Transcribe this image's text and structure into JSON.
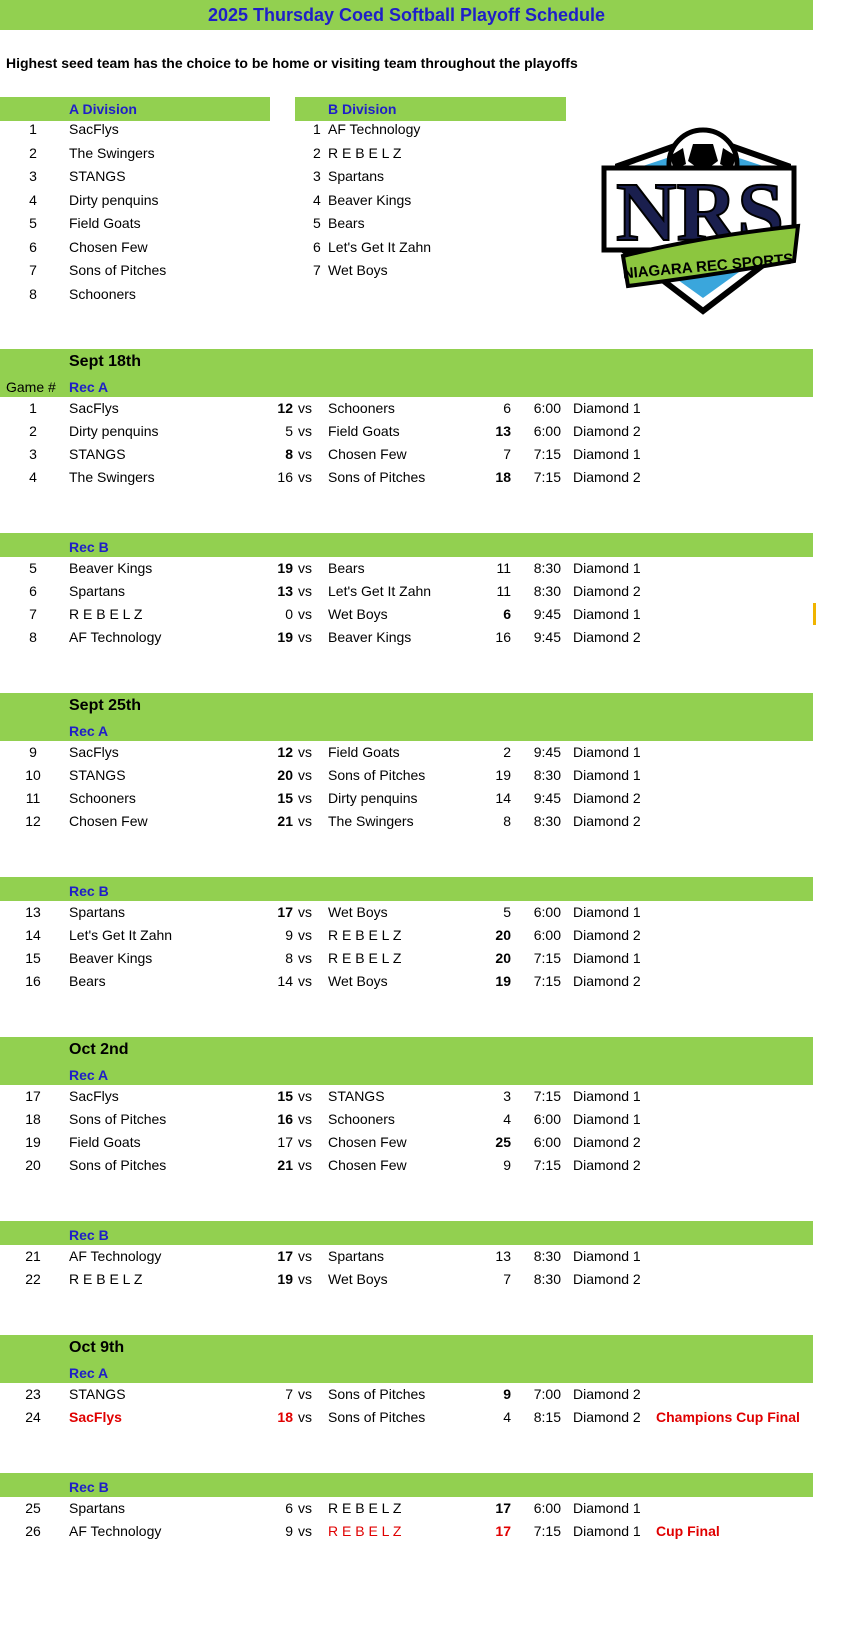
{
  "title": "2025 Thursday Coed Softball Playoff Schedule",
  "note": "Highest seed team has the choice to be home or visiting team throughout the playoffs",
  "colors": {
    "band": "#92d050",
    "header_text": "#1f1fc8",
    "highlight": "#e00000"
  },
  "logo": {
    "text": "NRS",
    "banner": "NIAGARA REC SPORTS"
  },
  "divisions": [
    {
      "label": "A Division",
      "teams": [
        {
          "seed": "1",
          "name": "SacFlys"
        },
        {
          "seed": "2",
          "name": "The Swingers"
        },
        {
          "seed": "3",
          "name": "STANGS"
        },
        {
          "seed": "4",
          "name": "Dirty penquins"
        },
        {
          "seed": "5",
          "name": "Field Goats"
        },
        {
          "seed": "6",
          "name": "Chosen Few"
        },
        {
          "seed": "7",
          "name": "Sons of Pitches"
        },
        {
          "seed": "8",
          "name": "Schooners"
        }
      ]
    },
    {
      "label": "B Division",
      "teams": [
        {
          "seed": "1",
          "name": "AF Technology"
        },
        {
          "seed": "2",
          "name": "R E B E L Z"
        },
        {
          "seed": "3",
          "name": "Spartans"
        },
        {
          "seed": "4",
          "name": "Beaver Kings"
        },
        {
          "seed": "5",
          "name": "Bears"
        },
        {
          "seed": "6",
          "name": "Let's Get It Zahn"
        },
        {
          "seed": "7",
          "name": "Wet Boys"
        }
      ]
    }
  ],
  "game_col_label": "Game #",
  "vs": "vs",
  "weeks": [
    {
      "date": "Sept 18th",
      "groups": [
        {
          "label": "Rec A",
          "games": [
            {
              "n": "1",
              "t1": "SacFlys",
              "s1": "12",
              "t2": "Schooners",
              "s2": "6",
              "time": "6:00",
              "field": "Diamond 1",
              "win": 1
            },
            {
              "n": "2",
              "t1": "Dirty penquins",
              "s1": "5",
              "t2": "Field Goats",
              "s2": "13",
              "time": "6:00",
              "field": "Diamond 2",
              "win": 2
            },
            {
              "n": "3",
              "t1": "STANGS",
              "s1": "8",
              "t2": "Chosen Few",
              "s2": "7",
              "time": "7:15",
              "field": "Diamond 1",
              "win": 1
            },
            {
              "n": "4",
              "t1": "The Swingers",
              "s1": "16",
              "t2": "Sons of Pitches",
              "s2": "18",
              "time": "7:15",
              "field": "Diamond 2",
              "win": 2
            }
          ]
        },
        {
          "label": "Rec B",
          "games": [
            {
              "n": "5",
              "t1": "Beaver Kings",
              "s1": "19",
              "t2": "Bears",
              "s2": "11",
              "time": "8:30",
              "field": "Diamond 1",
              "win": 1
            },
            {
              "n": "6",
              "t1": "Spartans",
              "s1": "13",
              "t2": "Let's Get It Zahn",
              "s2": "11",
              "time": "8:30",
              "field": "Diamond 2",
              "win": 1
            },
            {
              "n": "7",
              "t1": "R E B E L Z",
              "s1": "0",
              "t2": "Wet Boys",
              "s2": "6",
              "time": "9:45",
              "field": "Diamond 1",
              "win": 2
            },
            {
              "n": "8",
              "t1": "AF Technology",
              "s1": "19",
              "t2": "Beaver Kings",
              "s2": "16",
              "time": "9:45",
              "field": "Diamond 2",
              "win": 1
            }
          ]
        }
      ]
    },
    {
      "date": "Sept 25th",
      "groups": [
        {
          "label": "Rec A",
          "games": [
            {
              "n": "9",
              "t1": "SacFlys",
              "s1": "12",
              "t2": "Field Goats",
              "s2": "2",
              "time": "9:45",
              "field": "Diamond 1",
              "win": 1
            },
            {
              "n": "10",
              "t1": "STANGS",
              "s1": "20",
              "t2": "Sons of Pitches",
              "s2": "19",
              "time": "8:30",
              "field": "Diamond 1",
              "win": 1
            },
            {
              "n": "11",
              "t1": "Schooners",
              "s1": "15",
              "t2": "Dirty penquins",
              "s2": "14",
              "time": "9:45",
              "field": "Diamond 2",
              "win": 1
            },
            {
              "n": "12",
              "t1": "Chosen Few",
              "s1": "21",
              "t2": "The Swingers",
              "s2": "8",
              "time": "8:30",
              "field": "Diamond 2",
              "win": 1
            }
          ]
        },
        {
          "label": "Rec B",
          "games": [
            {
              "n": "13",
              "t1": "Spartans",
              "s1": "17",
              "t2": "Wet Boys",
              "s2": "5",
              "time": "6:00",
              "field": "Diamond 1",
              "win": 1
            },
            {
              "n": "14",
              "t1": "Let's Get It Zahn",
              "s1": "9",
              "t2": "R E B E L Z",
              "s2": "20",
              "time": "6:00",
              "field": "Diamond 2",
              "win": 2
            },
            {
              "n": "15",
              "t1": "Beaver Kings",
              "s1": "8",
              "t2": "R E B E L Z",
              "s2": "20",
              "time": "7:15",
              "field": "Diamond 1",
              "win": 2
            },
            {
              "n": "16",
              "t1": "Bears",
              "s1": "14",
              "t2": "Wet Boys",
              "s2": "19",
              "time": "7:15",
              "field": "Diamond 2",
              "win": 2
            }
          ]
        }
      ]
    },
    {
      "date": "Oct 2nd",
      "groups": [
        {
          "label": "Rec A",
          "games": [
            {
              "n": "17",
              "t1": "SacFlys",
              "s1": "15",
              "t2": "STANGS",
              "s2": "3",
              "time": "7:15",
              "field": "Diamond 1",
              "win": 1
            },
            {
              "n": "18",
              "t1": "Sons of Pitches",
              "s1": "16",
              "t2": "Schooners",
              "s2": "4",
              "time": "6:00",
              "field": "Diamond 1",
              "win": 1
            },
            {
              "n": "19",
              "t1": "Field Goats",
              "s1": "17",
              "t2": "Chosen Few",
              "s2": "25",
              "time": "6:00",
              "field": "Diamond 2",
              "win": 2
            },
            {
              "n": "20",
              "t1": "Sons of Pitches",
              "s1": "21",
              "t2": "Chosen Few",
              "s2": "9",
              "time": "7:15",
              "field": "Diamond 2",
              "win": 1
            }
          ]
        },
        {
          "label": "Rec B",
          "games": [
            {
              "n": "21",
              "t1": "AF Technology",
              "s1": "17",
              "t2": "Spartans",
              "s2": "13",
              "time": "8:30",
              "field": "Diamond 1",
              "win": 1
            },
            {
              "n": "22",
              "t1": "R E B E L Z",
              "s1": "19",
              "t2": "Wet Boys",
              "s2": "7",
              "time": "8:30",
              "field": "Diamond 2",
              "win": 1
            }
          ]
        }
      ]
    },
    {
      "date": "Oct 9th",
      "groups": [
        {
          "label": "Rec A",
          "games": [
            {
              "n": "23",
              "t1": "STANGS",
              "s1": "7",
              "t2": "Sons of Pitches",
              "s2": "9",
              "time": "7:00",
              "field": "Diamond 2",
              "win": 2
            },
            {
              "n": "24",
              "t1": "SacFlys",
              "s1": "18",
              "t2": "Sons of Pitches",
              "s2": "4",
              "time": "8:15",
              "field": "Diamond 2",
              "win": 1,
              "champion": true,
              "note": "Champions Cup Final"
            }
          ]
        },
        {
          "label": "Rec B",
          "games": [
            {
              "n": "25",
              "t1": "Spartans",
              "s1": "6",
              "t2": "R E B E L Z",
              "s2": "17",
              "time": "6:00",
              "field": "Diamond 1",
              "win": 2
            },
            {
              "n": "26",
              "t1": "AF Technology",
              "s1": "9",
              "t2": "R E B E L Z",
              "s2": "17",
              "time": "7:15",
              "field": "Diamond 1",
              "win": 2,
              "champion": true,
              "note": "Cup Final"
            }
          ]
        }
      ]
    }
  ]
}
